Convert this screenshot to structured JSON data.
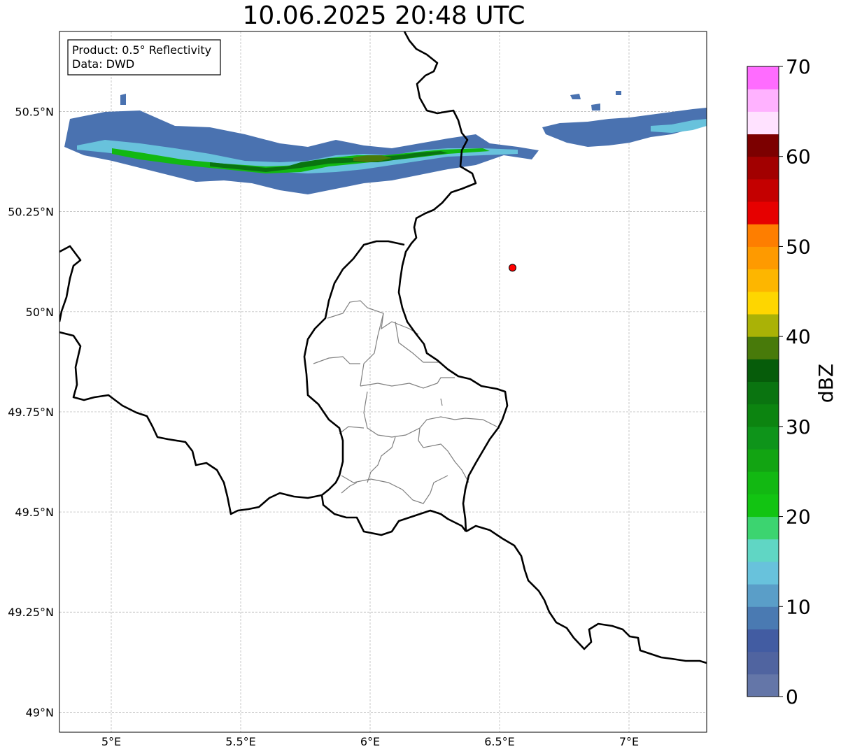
{
  "title": "10.06.2025 20:48 UTC",
  "info_box": {
    "line1": "Product: 0.5° Reflectivity",
    "line2": "Data: DWD"
  },
  "map": {
    "lon_range": [
      4.8,
      7.3
    ],
    "lat_range": [
      48.95,
      50.7
    ],
    "lon_ticks": [
      {
        "value": 5.0,
        "label": "5°E"
      },
      {
        "value": 5.5,
        "label": "5.5°E"
      },
      {
        "value": 6.0,
        "label": "6°E"
      },
      {
        "value": 6.5,
        "label": "6.5°E"
      },
      {
        "value": 7.0,
        "label": "7°E"
      }
    ],
    "lat_ticks": [
      {
        "value": 50.5,
        "label": "50.5°N"
      },
      {
        "value": 50.25,
        "label": "50.25°N"
      },
      {
        "value": 50.0,
        "label": "50°N"
      },
      {
        "value": 49.75,
        "label": "49.75°N"
      },
      {
        "value": 49.5,
        "label": "49.5°N"
      },
      {
        "value": 49.25,
        "label": "49.25°N"
      },
      {
        "value": 49.0,
        "label": "49°N"
      }
    ],
    "grid": true,
    "radar_site": {
      "lon": 6.55,
      "lat": 50.11,
      "color": "#ff0000"
    },
    "border_color": "#000000",
    "district_color": "#808080"
  },
  "colorbar": {
    "label": "dBZ",
    "min": 0,
    "max": 70,
    "step": 2.5,
    "tick_labels": [
      "0",
      "10",
      "20",
      "30",
      "40",
      "50",
      "60",
      "70"
    ],
    "colors": [
      "#6476a8",
      "#5064a0",
      "#425ca2",
      "#4a7ab2",
      "#5a9ec8",
      "#68c2dc",
      "#60d6c4",
      "#3cd470",
      "#12c412",
      "#12b812",
      "#12a412",
      "#0e941a",
      "#0c8410",
      "#0a7410",
      "#065c0a",
      "#487a0a",
      "#aab206",
      "#fed600",
      "#fdb600",
      "#fe9a00",
      "#fe7e00",
      "#e60000",
      "#c40000",
      "#a20000",
      "#7c0000",
      "#ffe2ff",
      "#ffb2ff",
      "#ff6cff",
      "#ea38ee"
    ]
  }
}
